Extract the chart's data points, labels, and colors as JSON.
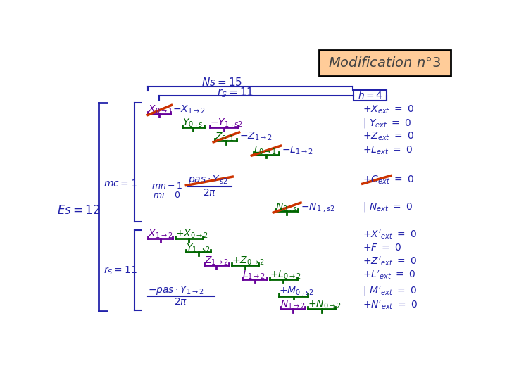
{
  "title_bg": "#FFCC99",
  "title_border": "#000000",
  "bg_color": "#FFFFFF",
  "bm": "#2222AA",
  "gr": "#006600",
  "pu": "#660099",
  "rd": "#CC3300"
}
